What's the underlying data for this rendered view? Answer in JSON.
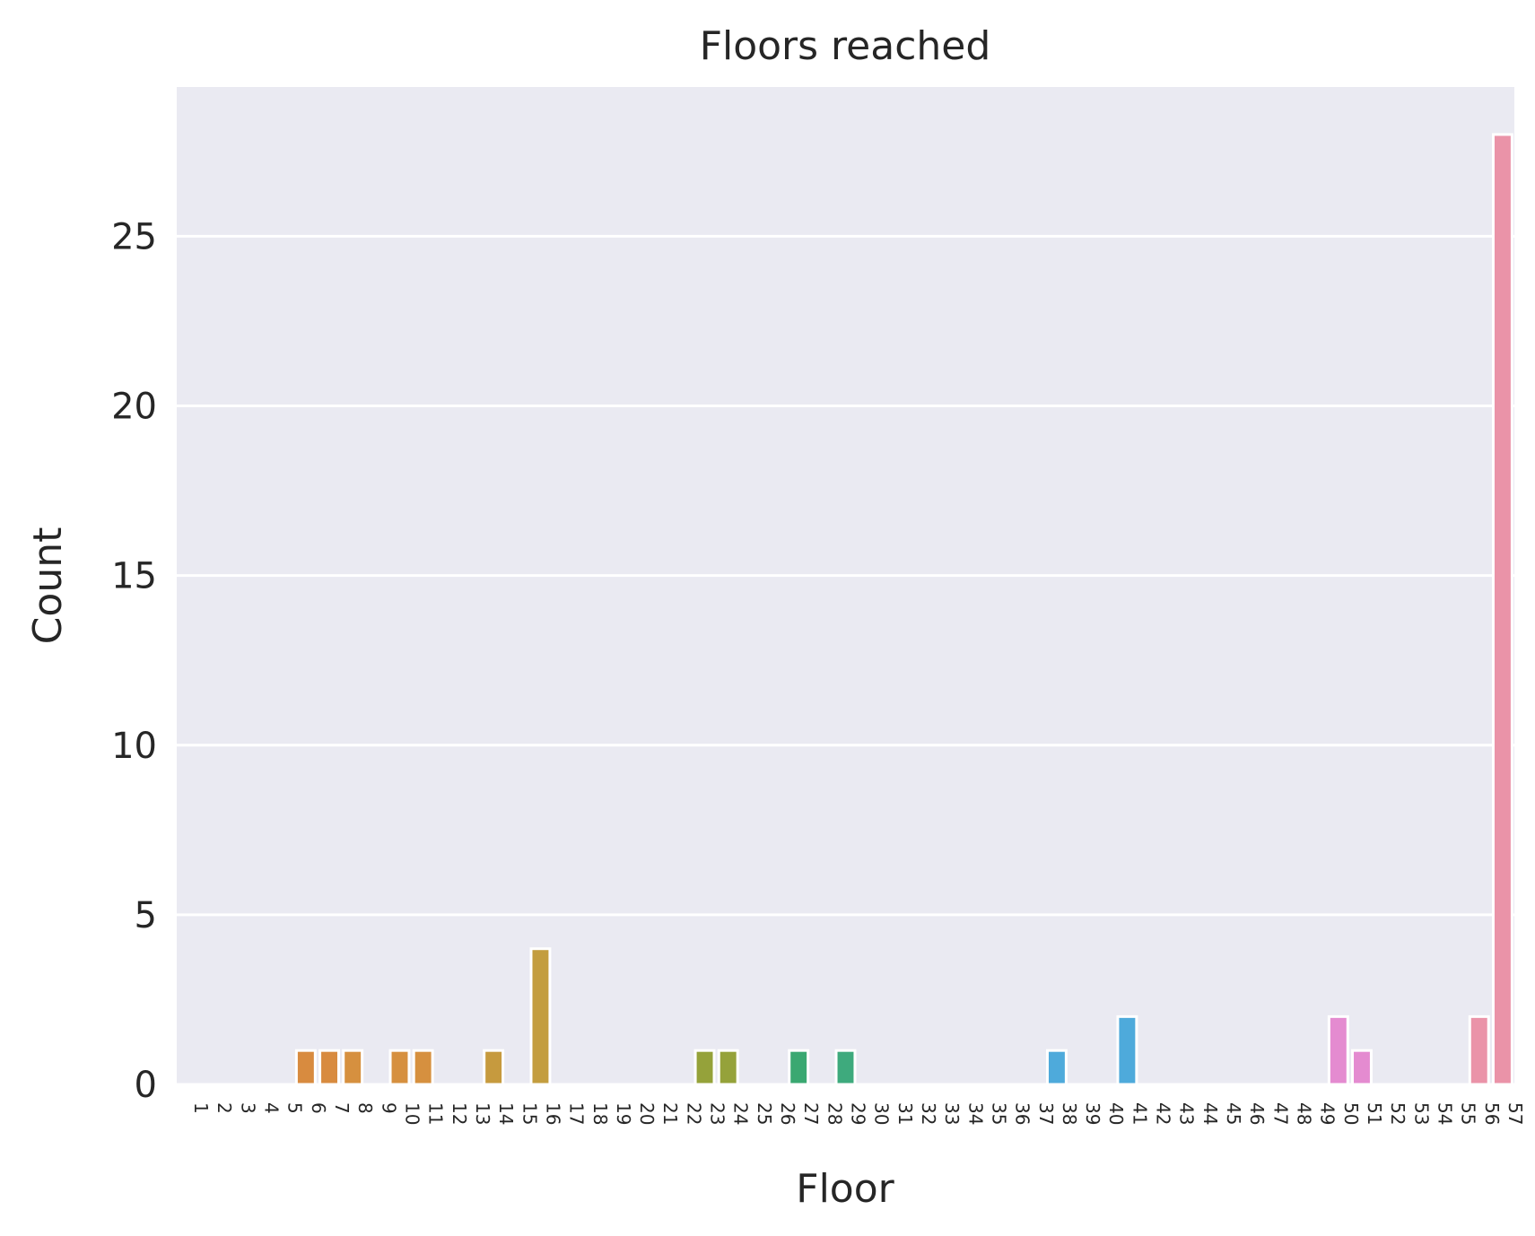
{
  "chart_data": {
    "type": "bar",
    "title": "Floors reached",
    "xlabel": "Floor",
    "ylabel": "Count",
    "ylim": [
      0,
      29.4
    ],
    "yticks": [
      0,
      5,
      10,
      15,
      20,
      25
    ],
    "grid": true,
    "legend": "none",
    "categories": [
      "1",
      "2",
      "3",
      "4",
      "5",
      "6",
      "7",
      "8",
      "9",
      "10",
      "11",
      "12",
      "13",
      "14",
      "15",
      "16",
      "17",
      "18",
      "19",
      "20",
      "21",
      "22",
      "23",
      "24",
      "25",
      "26",
      "27",
      "28",
      "29",
      "30",
      "31",
      "32",
      "33",
      "34",
      "35",
      "36",
      "37",
      "38",
      "39",
      "40",
      "41",
      "42",
      "43",
      "44",
      "45",
      "46",
      "47",
      "48",
      "49",
      "50",
      "51",
      "52",
      "53",
      "54",
      "55",
      "56",
      "57"
    ],
    "values": [
      0,
      0,
      0,
      0,
      0,
      1,
      1,
      1,
      0,
      1,
      1,
      0,
      0,
      1,
      0,
      4,
      0,
      0,
      0,
      0,
      0,
      0,
      1,
      1,
      0,
      0,
      1,
      0,
      1,
      0,
      0,
      0,
      0,
      0,
      0,
      0,
      0,
      1,
      0,
      0,
      2,
      0,
      0,
      0,
      0,
      0,
      0,
      0,
      0,
      2,
      1,
      0,
      0,
      0,
      0,
      2,
      28
    ],
    "colors": {
      "plot_background": "#eaeaf2",
      "grid": "#ffffff",
      "palette": [
        "#e1812c",
        "#d88b3f",
        "#d6903f",
        "#c69a3e",
        "#c39d3f",
        "#9ea13a",
        "#95a23a",
        "#3aa871",
        "#3eaa7d",
        "#3ea793",
        "#46a99b",
        "#4eaadb",
        "#95a8e8",
        "#e48be0",
        "#e48bd0",
        "#e68fb0",
        "#ea93a8"
      ]
    }
  }
}
